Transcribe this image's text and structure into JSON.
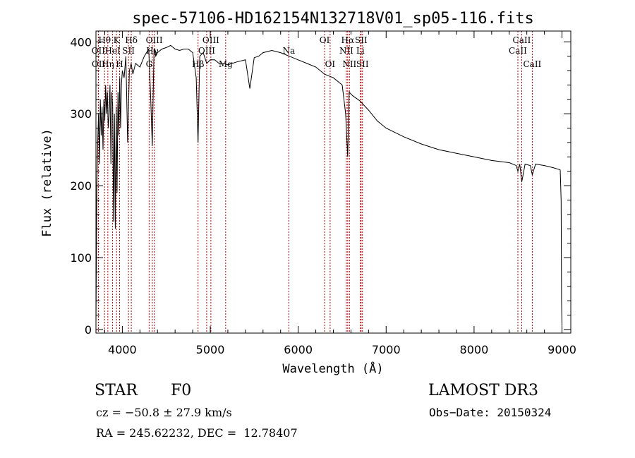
{
  "chart_data": {
    "type": "line",
    "title": "spec-57106-HD162154N132718V01_sp05-116.fits",
    "xlabel": "Wavelength (Å)",
    "ylabel": "Flux (relative)",
    "xlim": [
      3700,
      9100
    ],
    "ylim": [
      -5,
      415
    ],
    "xticks": [
      4000,
      5000,
      6000,
      7000,
      8000,
      9000
    ],
    "yticks": [
      0,
      100,
      200,
      300,
      400
    ],
    "xtick_labels": [
      "4000",
      "5000",
      "6000",
      "7000",
      "8000",
      "9000"
    ],
    "ytick_labels": [
      "0",
      "100",
      "200",
      "300",
      "400"
    ],
    "line_color": "#000000",
    "marker_color": "#cc0000",
    "series": [
      {
        "name": "flux",
        "x": [
          3700,
          3710,
          3720,
          3730,
          3740,
          3750,
          3760,
          3770,
          3780,
          3790,
          3800,
          3810,
          3820,
          3830,
          3840,
          3850,
          3860,
          3870,
          3880,
          3890,
          3900,
          3910,
          3920,
          3930,
          3940,
          3950,
          3960,
          3970,
          3980,
          3990,
          4000,
          4020,
          4040,
          4060,
          4080,
          4100,
          4120,
          4150,
          4200,
          4250,
          4300,
          4320,
          4340,
          4360,
          4380,
          4400,
          4450,
          4500,
          4550,
          4600,
          4650,
          4700,
          4750,
          4800,
          4840,
          4861,
          4880,
          4920,
          4960,
          5000,
          5050,
          5100,
          5150,
          5200,
          5300,
          5400,
          5450,
          5500,
          5550,
          5600,
          5700,
          5800,
          5900,
          6000,
          6100,
          6200,
          6300,
          6400,
          6500,
          6540,
          6563,
          6580,
          6620,
          6700,
          6800,
          6900,
          7000,
          7200,
          7400,
          7600,
          7800,
          8000,
          8200,
          8400,
          8480,
          8498,
          8520,
          8542,
          8580,
          8640,
          8662,
          8700,
          8800,
          8900,
          8980,
          8990,
          8995,
          9000
        ],
        "y": [
          5,
          200,
          260,
          300,
          230,
          320,
          270,
          310,
          250,
          320,
          290,
          340,
          300,
          330,
          280,
          300,
          340,
          230,
          330,
          310,
          150,
          300,
          140,
          310,
          190,
          330,
          270,
          350,
          280,
          340,
          360,
          350,
          380,
          260,
          360,
          370,
          355,
          370,
          365,
          380,
          390,
          330,
          255,
          390,
          380,
          385,
          390,
          392,
          395,
          390,
          388,
          390,
          390,
          385,
          350,
          260,
          380,
          385,
          370,
          375,
          375,
          370,
          370,
          368,
          372,
          375,
          335,
          378,
          380,
          385,
          388,
          385,
          380,
          375,
          370,
          365,
          355,
          350,
          340,
          300,
          240,
          330,
          325,
          318,
          305,
          290,
          280,
          268,
          258,
          250,
          245,
          240,
          235,
          232,
          228,
          220,
          230,
          205,
          230,
          228,
          215,
          230,
          228,
          225,
          222,
          180,
          40,
          5
        ]
      }
    ],
    "lines": [
      {
        "name": "Hθ",
        "wave": 3798,
        "row": 1
      },
      {
        "name": "Hη",
        "wave": 3835,
        "row": 3
      },
      {
        "name": "OII",
        "wave": 3727,
        "row": 2
      },
      {
        "name": "OII",
        "wave": 3729,
        "row": 3
      },
      {
        "name": "HeI",
        "wave": 3889,
        "row": 2
      },
      {
        "name": "K",
        "wave": 3934,
        "row": 1
      },
      {
        "name": "H",
        "wave": 3969,
        "row": 3
      },
      {
        "name": "SII",
        "wave": 4070,
        "row": 2
      },
      {
        "name": "Hδ",
        "wave": 4102,
        "row": 1
      },
      {
        "name": "G",
        "wave": 4305,
        "row": 3
      },
      {
        "name": "Hγ",
        "wave": 4341,
        "row": 2
      },
      {
        "name": "OIII",
        "wave": 4363,
        "row": 1
      },
      {
        "name": "Hβ",
        "wave": 4861,
        "row": 3
      },
      {
        "name": "OIII",
        "wave": 4959,
        "row": 2
      },
      {
        "name": "OIII",
        "wave": 5007,
        "row": 1
      },
      {
        "name": "Mg",
        "wave": 5175,
        "row": 3
      },
      {
        "name": "Na",
        "wave": 5894,
        "row": 2
      },
      {
        "name": "OI",
        "wave": 6300,
        "row": 1
      },
      {
        "name": "OI",
        "wave": 6363,
        "row": 3
      },
      {
        "name": "NII",
        "wave": 6548,
        "row": 2
      },
      {
        "name": "Hα",
        "wave": 6563,
        "row": 1
      },
      {
        "name": "NII",
        "wave": 6583,
        "row": 3
      },
      {
        "name": "Li",
        "wave": 6707,
        "row": 2
      },
      {
        "name": "SII",
        "wave": 6716,
        "row": 1
      },
      {
        "name": "SII",
        "wave": 6731,
        "row": 3
      },
      {
        "name": "CaII",
        "wave": 8498,
        "row": 2
      },
      {
        "name": "CaII",
        "wave": 8542,
        "row": 1
      },
      {
        "name": "CaII",
        "wave": 8662,
        "row": 3
      }
    ]
  },
  "info": {
    "object_class": "STAR",
    "subclass": "F0",
    "survey": "LAMOST DR3",
    "redshift": "cz = −50.8 ± 27.9 km/s",
    "obs_date": "Obs−Date: 20150324",
    "coords": "RA = 245.62232, DEC =  12.78407"
  }
}
